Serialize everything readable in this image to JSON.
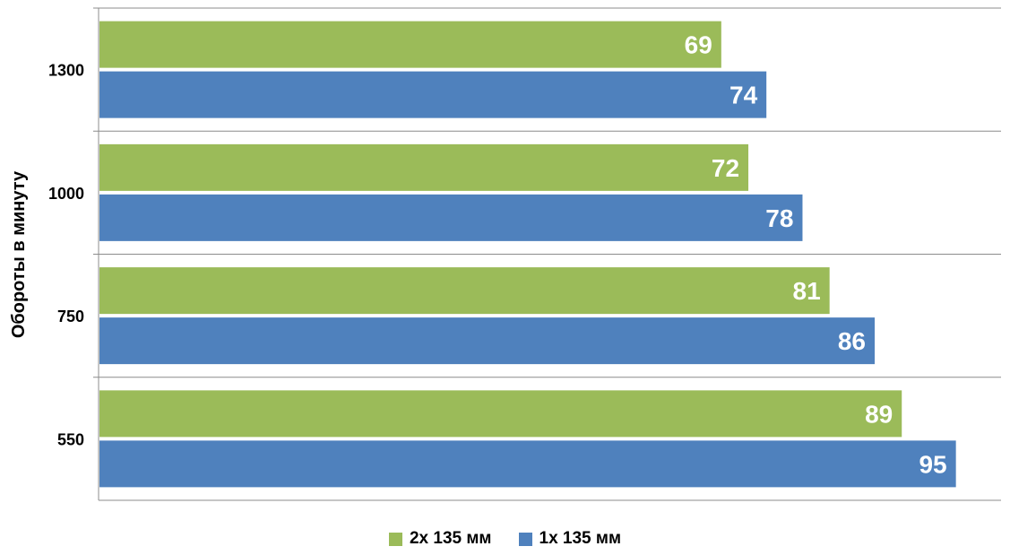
{
  "chart_data": {
    "type": "bar",
    "orientation": "horizontal",
    "ylabel": "Обороты в минуту",
    "xlabel": "",
    "title": "",
    "categories": [
      "1300",
      "1000",
      "750",
      "550"
    ],
    "series": [
      {
        "name": "2x 135 мм",
        "values": [
          69,
          72,
          81,
          89
        ],
        "color": "#9BBB59"
      },
      {
        "name": "1x 135 мм",
        "values": [
          74,
          78,
          86,
          95
        ],
        "color": "#4F81BD"
      }
    ],
    "xlim": [
      0,
      100
    ],
    "grid": true,
    "data_labels": true,
    "legend_position": "bottom"
  }
}
